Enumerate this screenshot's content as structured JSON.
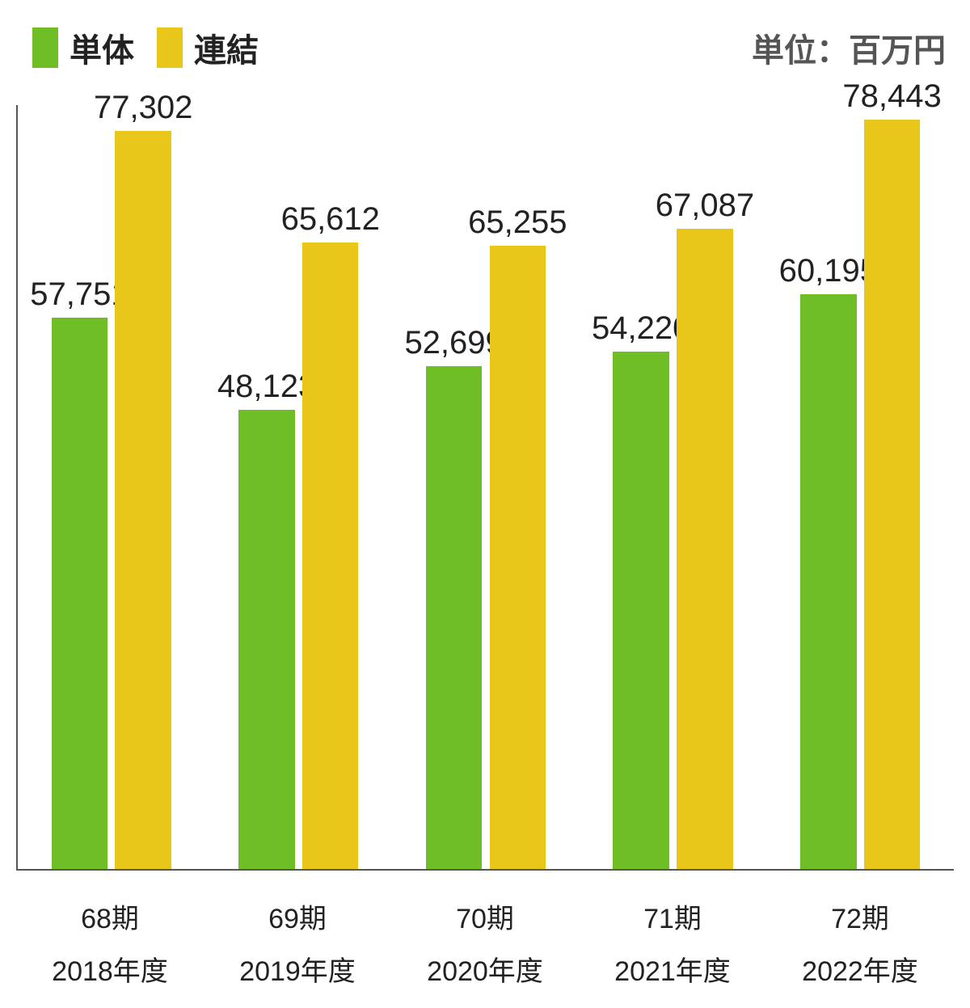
{
  "chart": {
    "type": "grouped-bar",
    "background_color": "#ffffff",
    "text_color": "#222222",
    "axis_color": "#555555",
    "unit_label": "単位：百万円",
    "unit_label_fontsize": 40,
    "legend_fontsize": 40,
    "value_label_fontsize": 40,
    "x_label_fontsize": 34,
    "y_max": 80000,
    "bar_width_pct": 30,
    "bar_gap_pct": 4,
    "group_pad_left_pct": 18,
    "series": [
      {
        "key": "standalone",
        "label": "単体",
        "color": "#6fbe26"
      },
      {
        "key": "consolidated",
        "label": "連結",
        "color": "#e9c61a"
      }
    ],
    "categories": [
      {
        "line1": "68期",
        "line2": "2018年度"
      },
      {
        "line1": "69期",
        "line2": "2019年度"
      },
      {
        "line1": "70期",
        "line2": "2020年度"
      },
      {
        "line1": "71期",
        "line2": "2021年度"
      },
      {
        "line1": "72期",
        "line2": "2022年度"
      }
    ],
    "data": {
      "standalone": [
        57751,
        48123,
        52699,
        54220,
        60195
      ],
      "consolidated": [
        77302,
        65612,
        65255,
        67087,
        78443
      ]
    },
    "value_labels": {
      "standalone": [
        "57,751",
        "48,123",
        "52,699",
        "54,220",
        "60,195"
      ],
      "consolidated": [
        "77,302",
        "65,612",
        "65,255",
        "67,087",
        "78,443"
      ]
    }
  }
}
